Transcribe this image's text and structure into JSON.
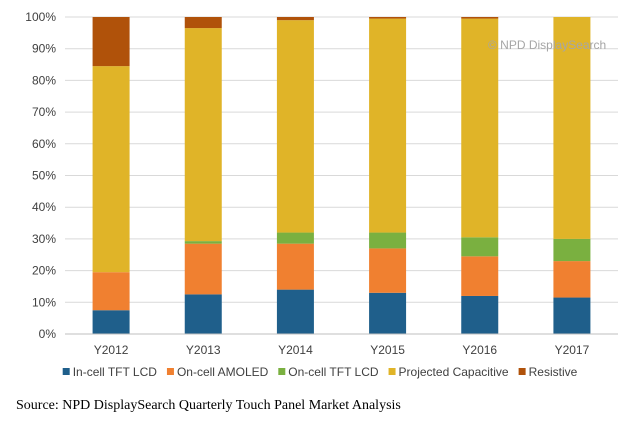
{
  "watermark": "© NPD DisplaySearch",
  "source": "Source: NPD DisplaySearch Quarterly Touch Panel Market Analysis",
  "chart_data": {
    "type": "bar",
    "stacked": true,
    "title": "",
    "xlabel": "",
    "ylabel": "",
    "ylim": [
      0,
      100
    ],
    "y_tick_labels": [
      "0%",
      "10%",
      "20%",
      "30%",
      "40%",
      "50%",
      "60%",
      "70%",
      "80%",
      "90%",
      "100%"
    ],
    "grid": true,
    "legend_position": "bottom",
    "categories": [
      "Y2012",
      "Y2013",
      "Y2014",
      "Y2015",
      "Y2016",
      "Y2017"
    ],
    "series": [
      {
        "name": "In-cell TFT LCD",
        "color": "#1f5f8b",
        "values": [
          7.5,
          12.5,
          14,
          13,
          12,
          11.5
        ]
      },
      {
        "name": "On-cell AMOLED",
        "color": "#f08030",
        "values": [
          12,
          16,
          14.5,
          14,
          12.5,
          11.5
        ]
      },
      {
        "name": "On-cell TFT LCD",
        "color": "#7ab040",
        "values": [
          0,
          0.8,
          3.5,
          5,
          6,
          7
        ]
      },
      {
        "name": "Projected Capacitive",
        "color": "#e0b428",
        "values": [
          65,
          67.2,
          67,
          67.5,
          69,
          70
        ]
      },
      {
        "name": "Resistive",
        "color": "#b0520a",
        "values": [
          15.5,
          3.5,
          1,
          0.5,
          0.5,
          0
        ]
      }
    ]
  }
}
